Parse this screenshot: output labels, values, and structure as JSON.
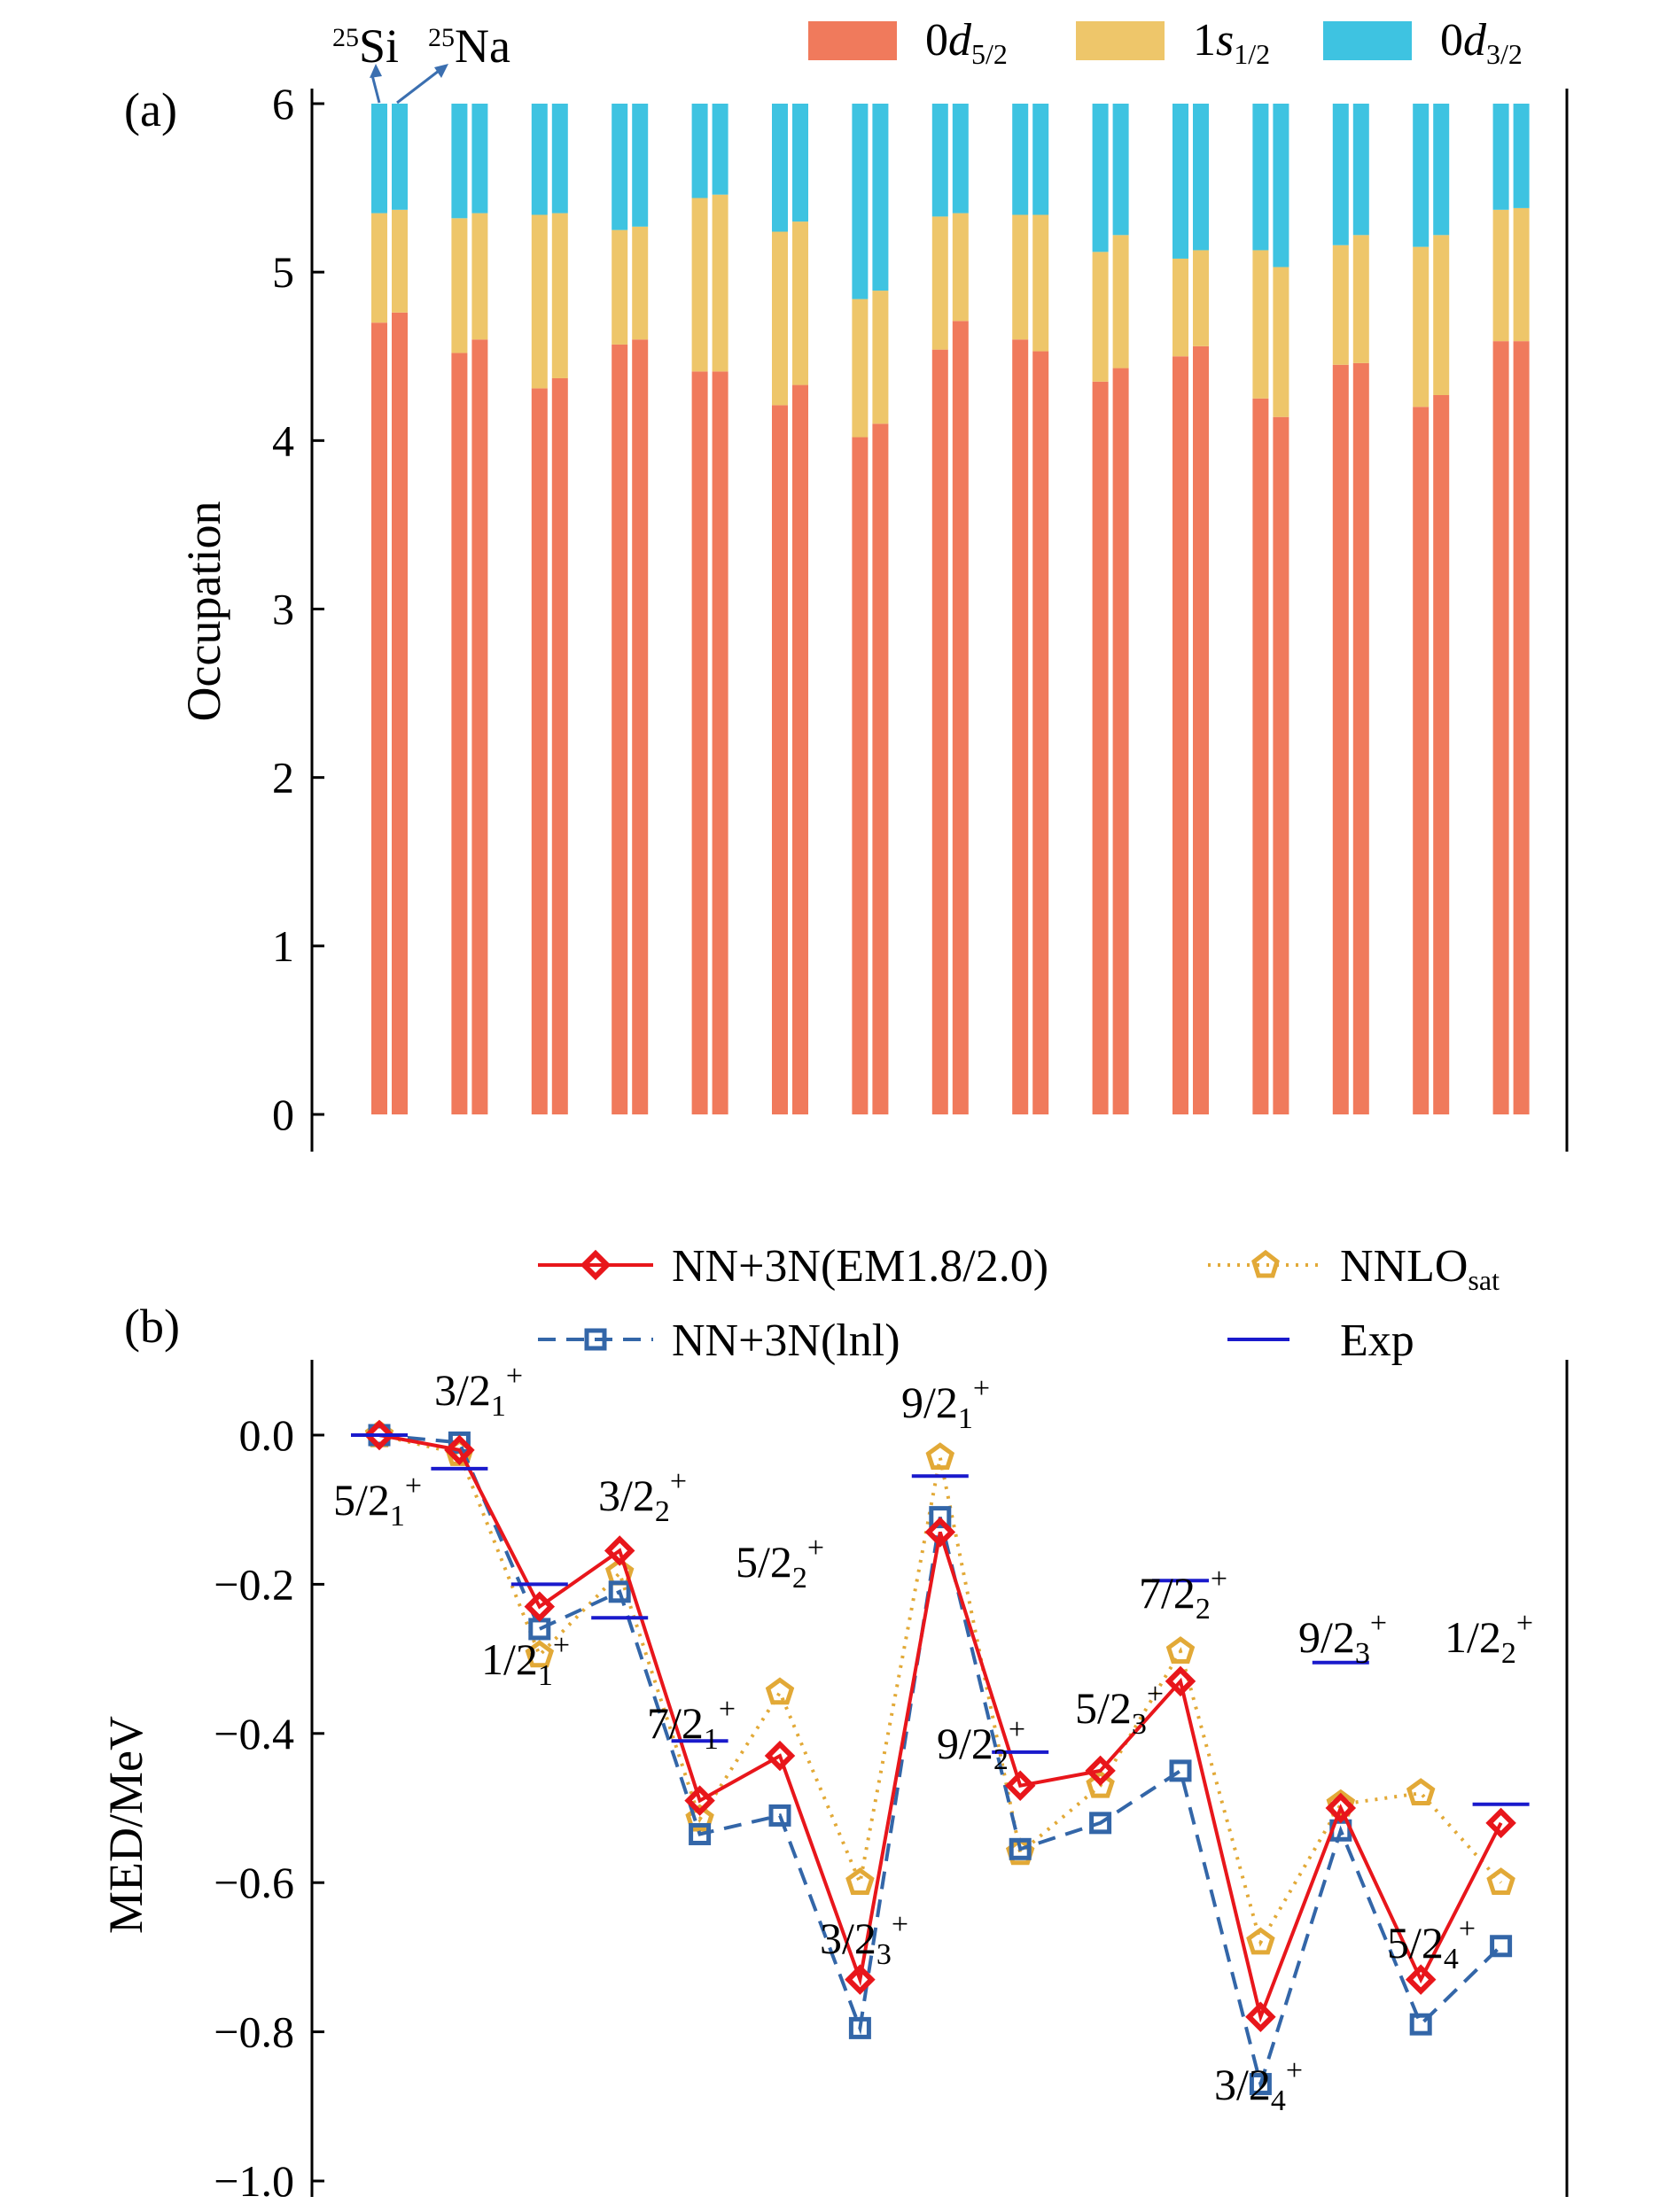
{
  "panel_a": {
    "tag": "(a)",
    "ylabel": "Occupation",
    "annotation": {
      "si_mass": "25",
      "si_sym": "Si",
      "na_mass": "25",
      "na_sym": "Na"
    },
    "legend": [
      {
        "main": "0",
        "italic": "d",
        "sub": "5/2",
        "color": "#F07A5C"
      },
      {
        "main": "1",
        "italic": "s",
        "sub": "1/2",
        "color": "#EEC66A"
      },
      {
        "main": "0",
        "italic": "d",
        "sub": "3/2",
        "color": "#3EC3E1"
      }
    ],
    "yticks": [
      "0",
      "1",
      "2",
      "3",
      "4",
      "5",
      "6"
    ]
  },
  "panel_b": {
    "tag": "(b)",
    "ylabel": "MED/MeV",
    "yticks": [
      "0.0",
      "−0.2",
      "−0.4",
      "−0.6",
      "−0.8",
      "−1.0"
    ],
    "legend": {
      "em": "NN+3N(EM1.8/2.0)",
      "lnl": "NN+3N(lnl)",
      "nnlo_main": "NNLO",
      "nnlo_sub": "sat",
      "exp": "Exp"
    },
    "state_labels": [
      {
        "num": "5/2",
        "sub": "1",
        "sup": "+"
      },
      {
        "num": "3/2",
        "sub": "1",
        "sup": "+"
      },
      {
        "num": "1/2",
        "sub": "1",
        "sup": "+"
      },
      {
        "num": "3/2",
        "sub": "2",
        "sup": "+"
      },
      {
        "num": "7/2",
        "sub": "1",
        "sup": "+"
      },
      {
        "num": "5/2",
        "sub": "2",
        "sup": "+"
      },
      {
        "num": "3/2",
        "sub": "3",
        "sup": "+"
      },
      {
        "num": "9/2",
        "sub": "1",
        "sup": "+"
      },
      {
        "num": "9/2",
        "sub": "2",
        "sup": "+"
      },
      {
        "num": "5/2",
        "sub": "3",
        "sup": "+"
      },
      {
        "num": "7/2",
        "sub": "2",
        "sup": "+"
      },
      {
        "num": "3/2",
        "sub": "4",
        "sup": "+"
      },
      {
        "num": "9/2",
        "sub": "3",
        "sup": "+"
      },
      {
        "num": "5/2",
        "sub": "4",
        "sup": "+"
      },
      {
        "num": "1/2",
        "sub": "2",
        "sup": "+"
      }
    ]
  },
  "chart_data": [
    {
      "type": "bar",
      "stacked": true,
      "ylabel": "Occupation",
      "ylim": [
        0,
        6
      ],
      "category_count": 15,
      "bars_per_category": [
        "25Si",
        "25Na"
      ],
      "series": [
        {
          "name": "0d5/2",
          "color": "#F07A5C",
          "si": [
            4.7,
            4.52,
            4.31,
            4.57,
            4.41,
            4.21,
            4.02,
            4.54,
            4.6,
            4.35,
            4.5,
            4.25,
            4.45,
            4.2,
            4.59
          ],
          "na": [
            4.76,
            4.6,
            4.37,
            4.6,
            4.41,
            4.33,
            4.1,
            4.71,
            4.53,
            4.43,
            4.56,
            4.14,
            4.46,
            4.27,
            4.59
          ]
        },
        {
          "name": "1s1/2",
          "color": "#EEC66A",
          "si": [
            0.65,
            0.8,
            1.03,
            0.68,
            1.03,
            1.03,
            0.82,
            0.79,
            0.74,
            0.77,
            0.58,
            0.88,
            0.71,
            0.95,
            0.78
          ],
          "na": [
            0.61,
            0.75,
            0.98,
            0.67,
            1.05,
            0.97,
            0.79,
            0.64,
            0.81,
            0.79,
            0.57,
            0.89,
            0.76,
            0.95,
            0.79
          ]
        },
        {
          "name": "0d3/2",
          "color": "#3EC3E1",
          "si": [
            0.65,
            0.68,
            0.66,
            0.75,
            0.56,
            0.76,
            1.16,
            0.67,
            0.66,
            0.88,
            0.92,
            0.87,
            0.84,
            0.85,
            0.63
          ],
          "na": [
            0.63,
            0.65,
            0.65,
            0.73,
            0.54,
            0.7,
            1.11,
            0.65,
            0.66,
            0.78,
            0.87,
            0.97,
            0.78,
            0.78,
            0.62
          ]
        }
      ]
    },
    {
      "type": "line",
      "ylabel": "MED/MeV",
      "ylim": [
        -1.0,
        0.1
      ],
      "x": [
        1,
        2,
        3,
        4,
        5,
        6,
        7,
        8,
        9,
        10,
        11,
        12,
        13,
        14,
        15
      ],
      "series": [
        {
          "name": "NN+3N(EM1.8/2.0)",
          "color": "#E8161B",
          "marker": "diamond",
          "linestyle": "solid",
          "values": [
            0.0,
            -0.02,
            -0.23,
            -0.155,
            -0.49,
            -0.43,
            -0.73,
            -0.13,
            -0.47,
            -0.45,
            -0.33,
            -0.78,
            -0.5,
            -0.73,
            -0.52
          ]
        },
        {
          "name": "NN+3N(lnl)",
          "color": "#3366A8",
          "marker": "square",
          "linestyle": "dashed",
          "values": [
            0.0,
            -0.01,
            -0.26,
            -0.21,
            -0.535,
            -0.51,
            -0.795,
            -0.11,
            -0.555,
            -0.52,
            -0.45,
            -0.87,
            -0.53,
            -0.79,
            -0.685
          ]
        },
        {
          "name": "NNLOsat",
          "color": "#E2A937",
          "marker": "pentagon",
          "linestyle": "dotted",
          "values": [
            0.0,
            -0.025,
            -0.295,
            -0.185,
            -0.515,
            -0.345,
            -0.6,
            -0.03,
            -0.56,
            -0.47,
            -0.29,
            -0.68,
            -0.495,
            -0.48,
            -0.6
          ]
        },
        {
          "name": "Exp",
          "color": "#1A1ACC",
          "marker": "hline",
          "values": [
            0.0,
            -0.045,
            -0.2,
            -0.245,
            -0.41,
            null,
            null,
            -0.055,
            -0.425,
            null,
            -0.195,
            null,
            -0.305,
            null,
            -0.495
          ]
        }
      ]
    }
  ]
}
